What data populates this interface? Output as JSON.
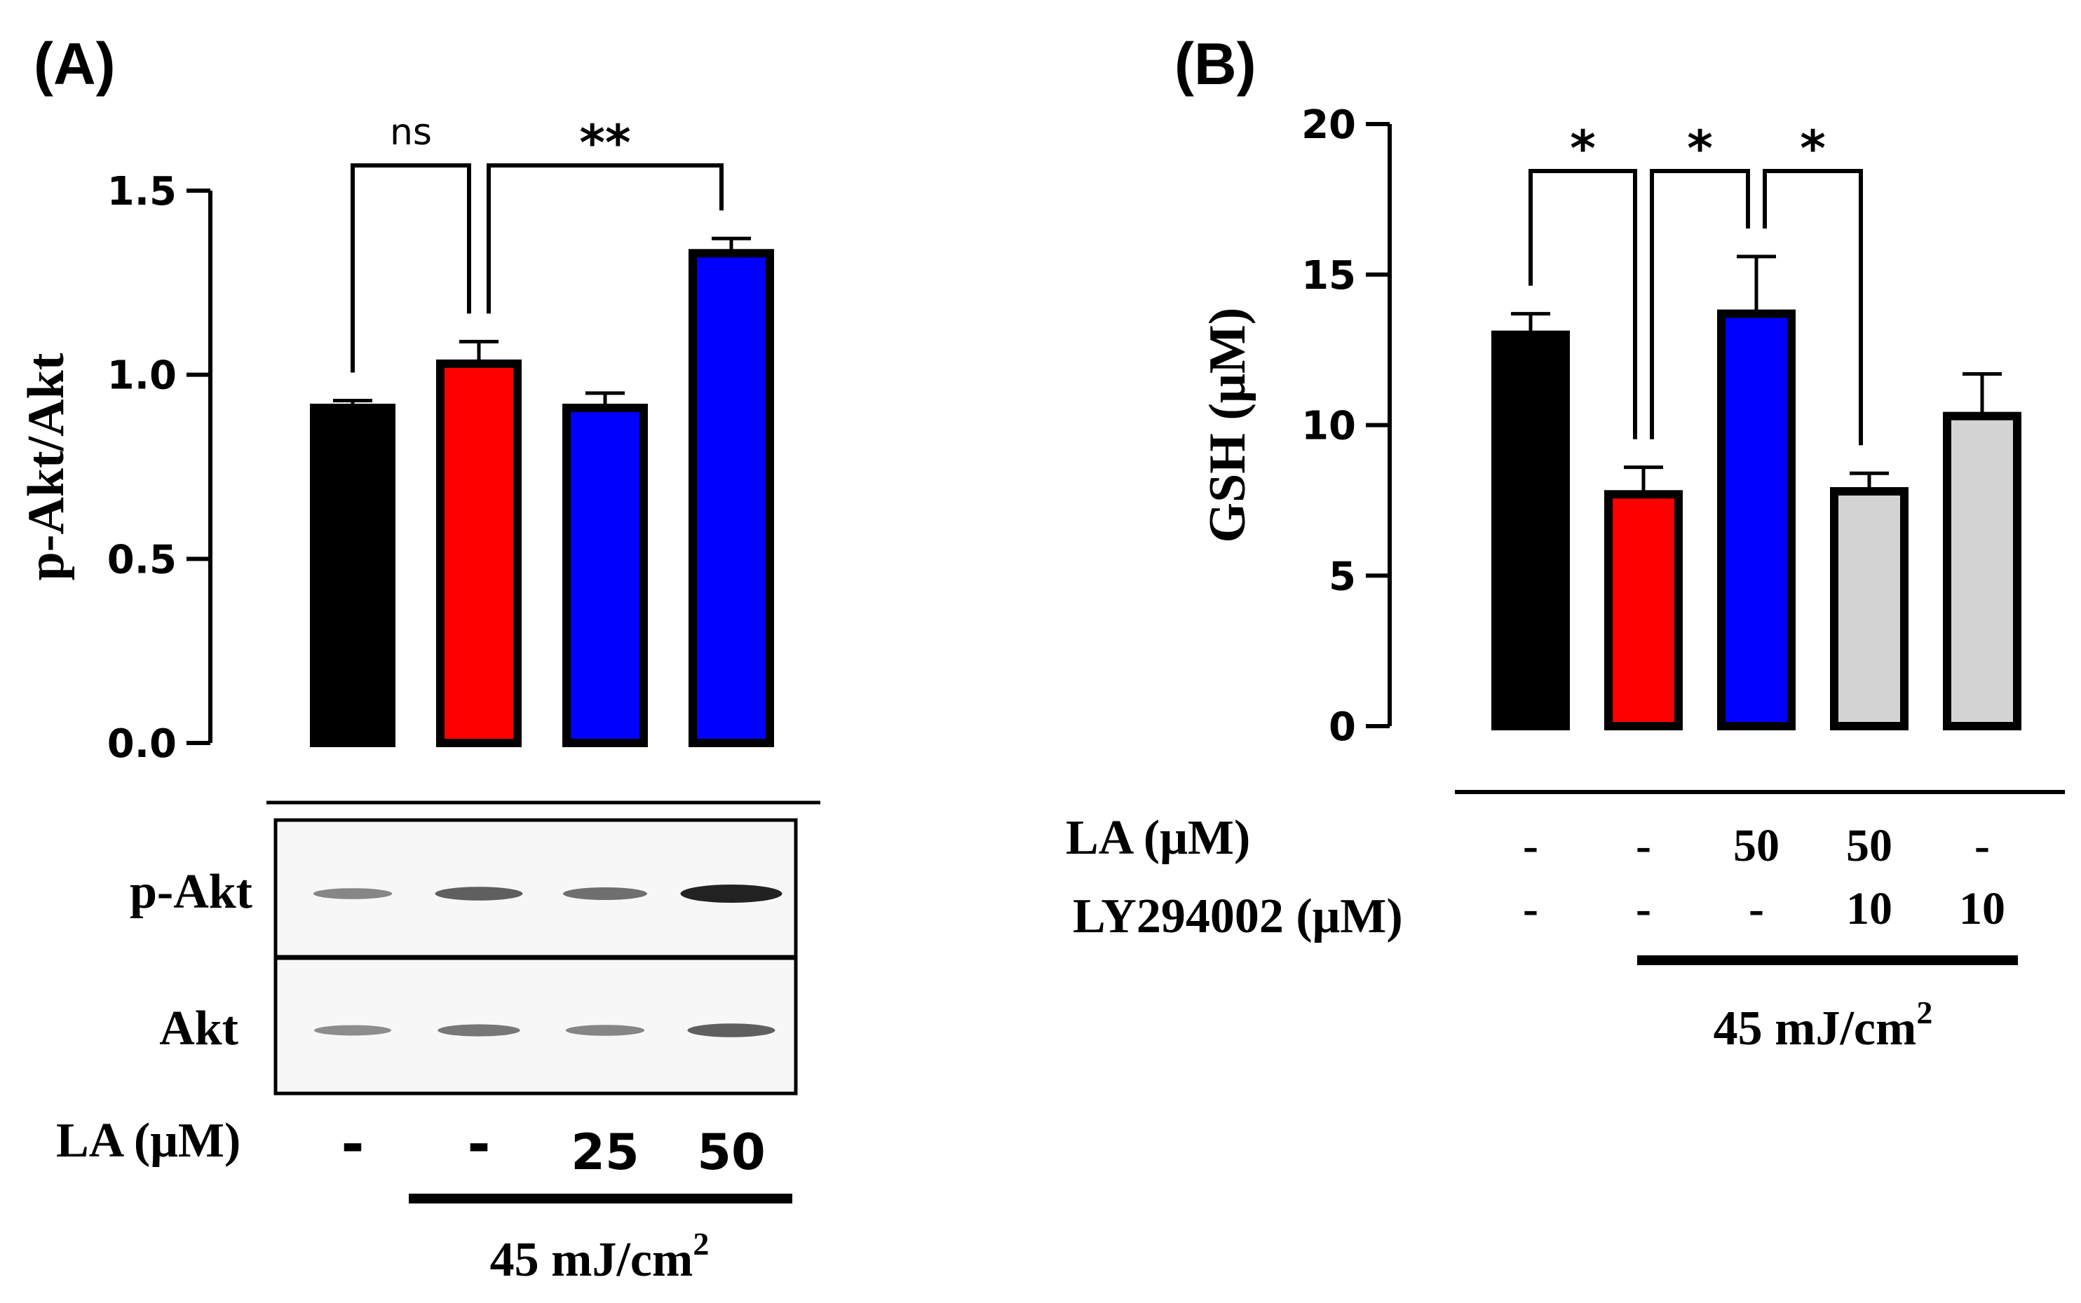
{
  "chart_data": [
    {
      "panel": "(A)",
      "type": "bar",
      "ylabel": "p-Akt/Akt",
      "ylim": [
        0,
        1.5
      ],
      "yticks": [
        "0.0",
        "0.5",
        "1.0",
        "1.5"
      ],
      "categories": [
        "-",
        "-",
        "25",
        "50"
      ],
      "values": [
        0.91,
        1.03,
        0.91,
        1.33
      ],
      "errors": [
        0.02,
        0.06,
        0.04,
        0.04
      ],
      "colors": [
        "#000000",
        "#ff0000",
        "#0000ff",
        "#0000ff"
      ],
      "significance": [
        {
          "label": "ns",
          "from": 0,
          "to": 1
        },
        {
          "label": "**",
          "from": 1,
          "to": 3
        }
      ],
      "condition_row": {
        "label": "LA (μM)",
        "values": [
          "-",
          "-",
          "25",
          "50"
        ]
      },
      "uv_dose": "45 mJ/cm",
      "uv_dose_sup": "2",
      "blot_rows": [
        "p-Akt",
        "Akt"
      ],
      "blot_intensity": [
        [
          0.35,
          0.6,
          0.5,
          1.0
        ],
        [
          0.3,
          0.45,
          0.35,
          0.6
        ]
      ]
    },
    {
      "panel": "(B)",
      "type": "bar",
      "ylabel": "GSH (μM)",
      "ylim": [
        0,
        20
      ],
      "yticks": [
        "0",
        "5",
        "10",
        "15",
        "20"
      ],
      "values": [
        13.0,
        7.7,
        13.7,
        7.8,
        10.3
      ],
      "errors": [
        0.7,
        0.9,
        1.9,
        0.6,
        1.4
      ],
      "colors": [
        "#000000",
        "#ff0000",
        "#0000ff",
        "#d3d3d3",
        "#d3d3d3"
      ],
      "significance": [
        {
          "label": "*",
          "from": 0,
          "to": 1
        },
        {
          "label": "*",
          "from": 1,
          "to": 2
        },
        {
          "label": "*",
          "from": 2,
          "to": 3
        }
      ],
      "condition_rows": [
        {
          "label": "LA (μM)",
          "values": [
            "-",
            "-",
            "50",
            "50",
            "-"
          ]
        },
        {
          "label": "LY294002 (μM)",
          "values": [
            "-",
            "-",
            "-",
            "10",
            "10"
          ]
        }
      ],
      "uv_dose": "45 mJ/cm",
      "uv_dose_sup": "2"
    }
  ]
}
